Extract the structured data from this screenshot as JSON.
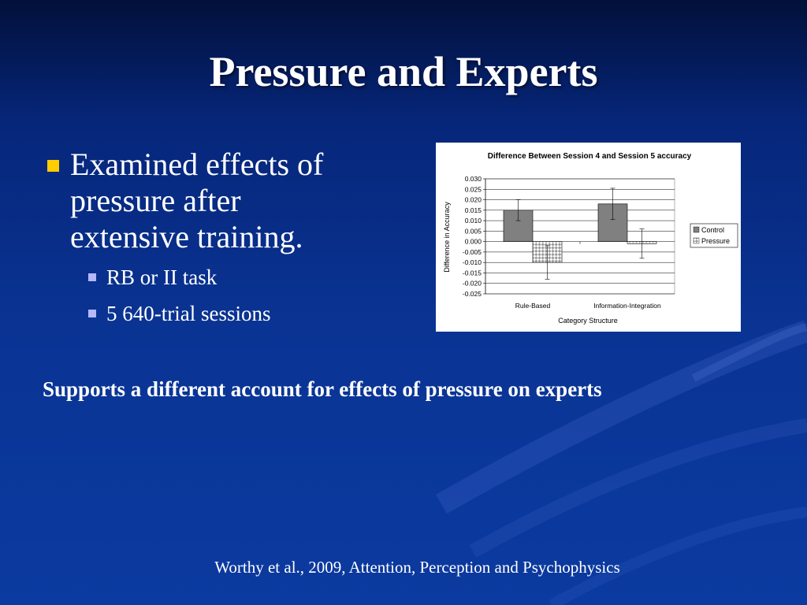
{
  "slide": {
    "title": "Pressure and Experts",
    "bullets": [
      {
        "text": "Examined effects of pressure after extensive training.",
        "lines": [
          "Examined effects of",
          "pressure after",
          "extensive training."
        ],
        "sub": [
          "RB or II task",
          "5 640-trial sessions"
        ]
      }
    ],
    "support_text": "Supports a different account for effects of pressure on experts",
    "citation": "Worthy et al., 2009, Attention, Perception and Psychophysics"
  },
  "colors": {
    "bullet_primary": "#ffcc00",
    "bullet_secondary": "#b5b8ff",
    "control_bar": "#808080",
    "pressure_bar_pattern": "checkered-gray"
  },
  "chart_data": {
    "type": "bar",
    "title": "Difference Between Session 4 and Session 5 accuracy",
    "xlabel": "Category Structure",
    "ylabel": "Difference in Accuracy",
    "categories": [
      "Rule-Based",
      "Information-Integration"
    ],
    "series": [
      {
        "name": "Control",
        "values": [
          0.015,
          0.018
        ],
        "error": [
          0.005,
          0.0075
        ]
      },
      {
        "name": "Pressure",
        "values": [
          -0.01,
          -0.001
        ],
        "error": [
          0.008,
          0.007
        ]
      }
    ],
    "ylim": [
      -0.025,
      0.03
    ],
    "yticks": [
      "0.030",
      "0.025",
      "0.020",
      "0.015",
      "0.010",
      "0.005",
      "0.000",
      "-0.005",
      "-0.010",
      "-0.015",
      "-0.020",
      "-0.025"
    ],
    "grid": true,
    "legend": "right"
  }
}
